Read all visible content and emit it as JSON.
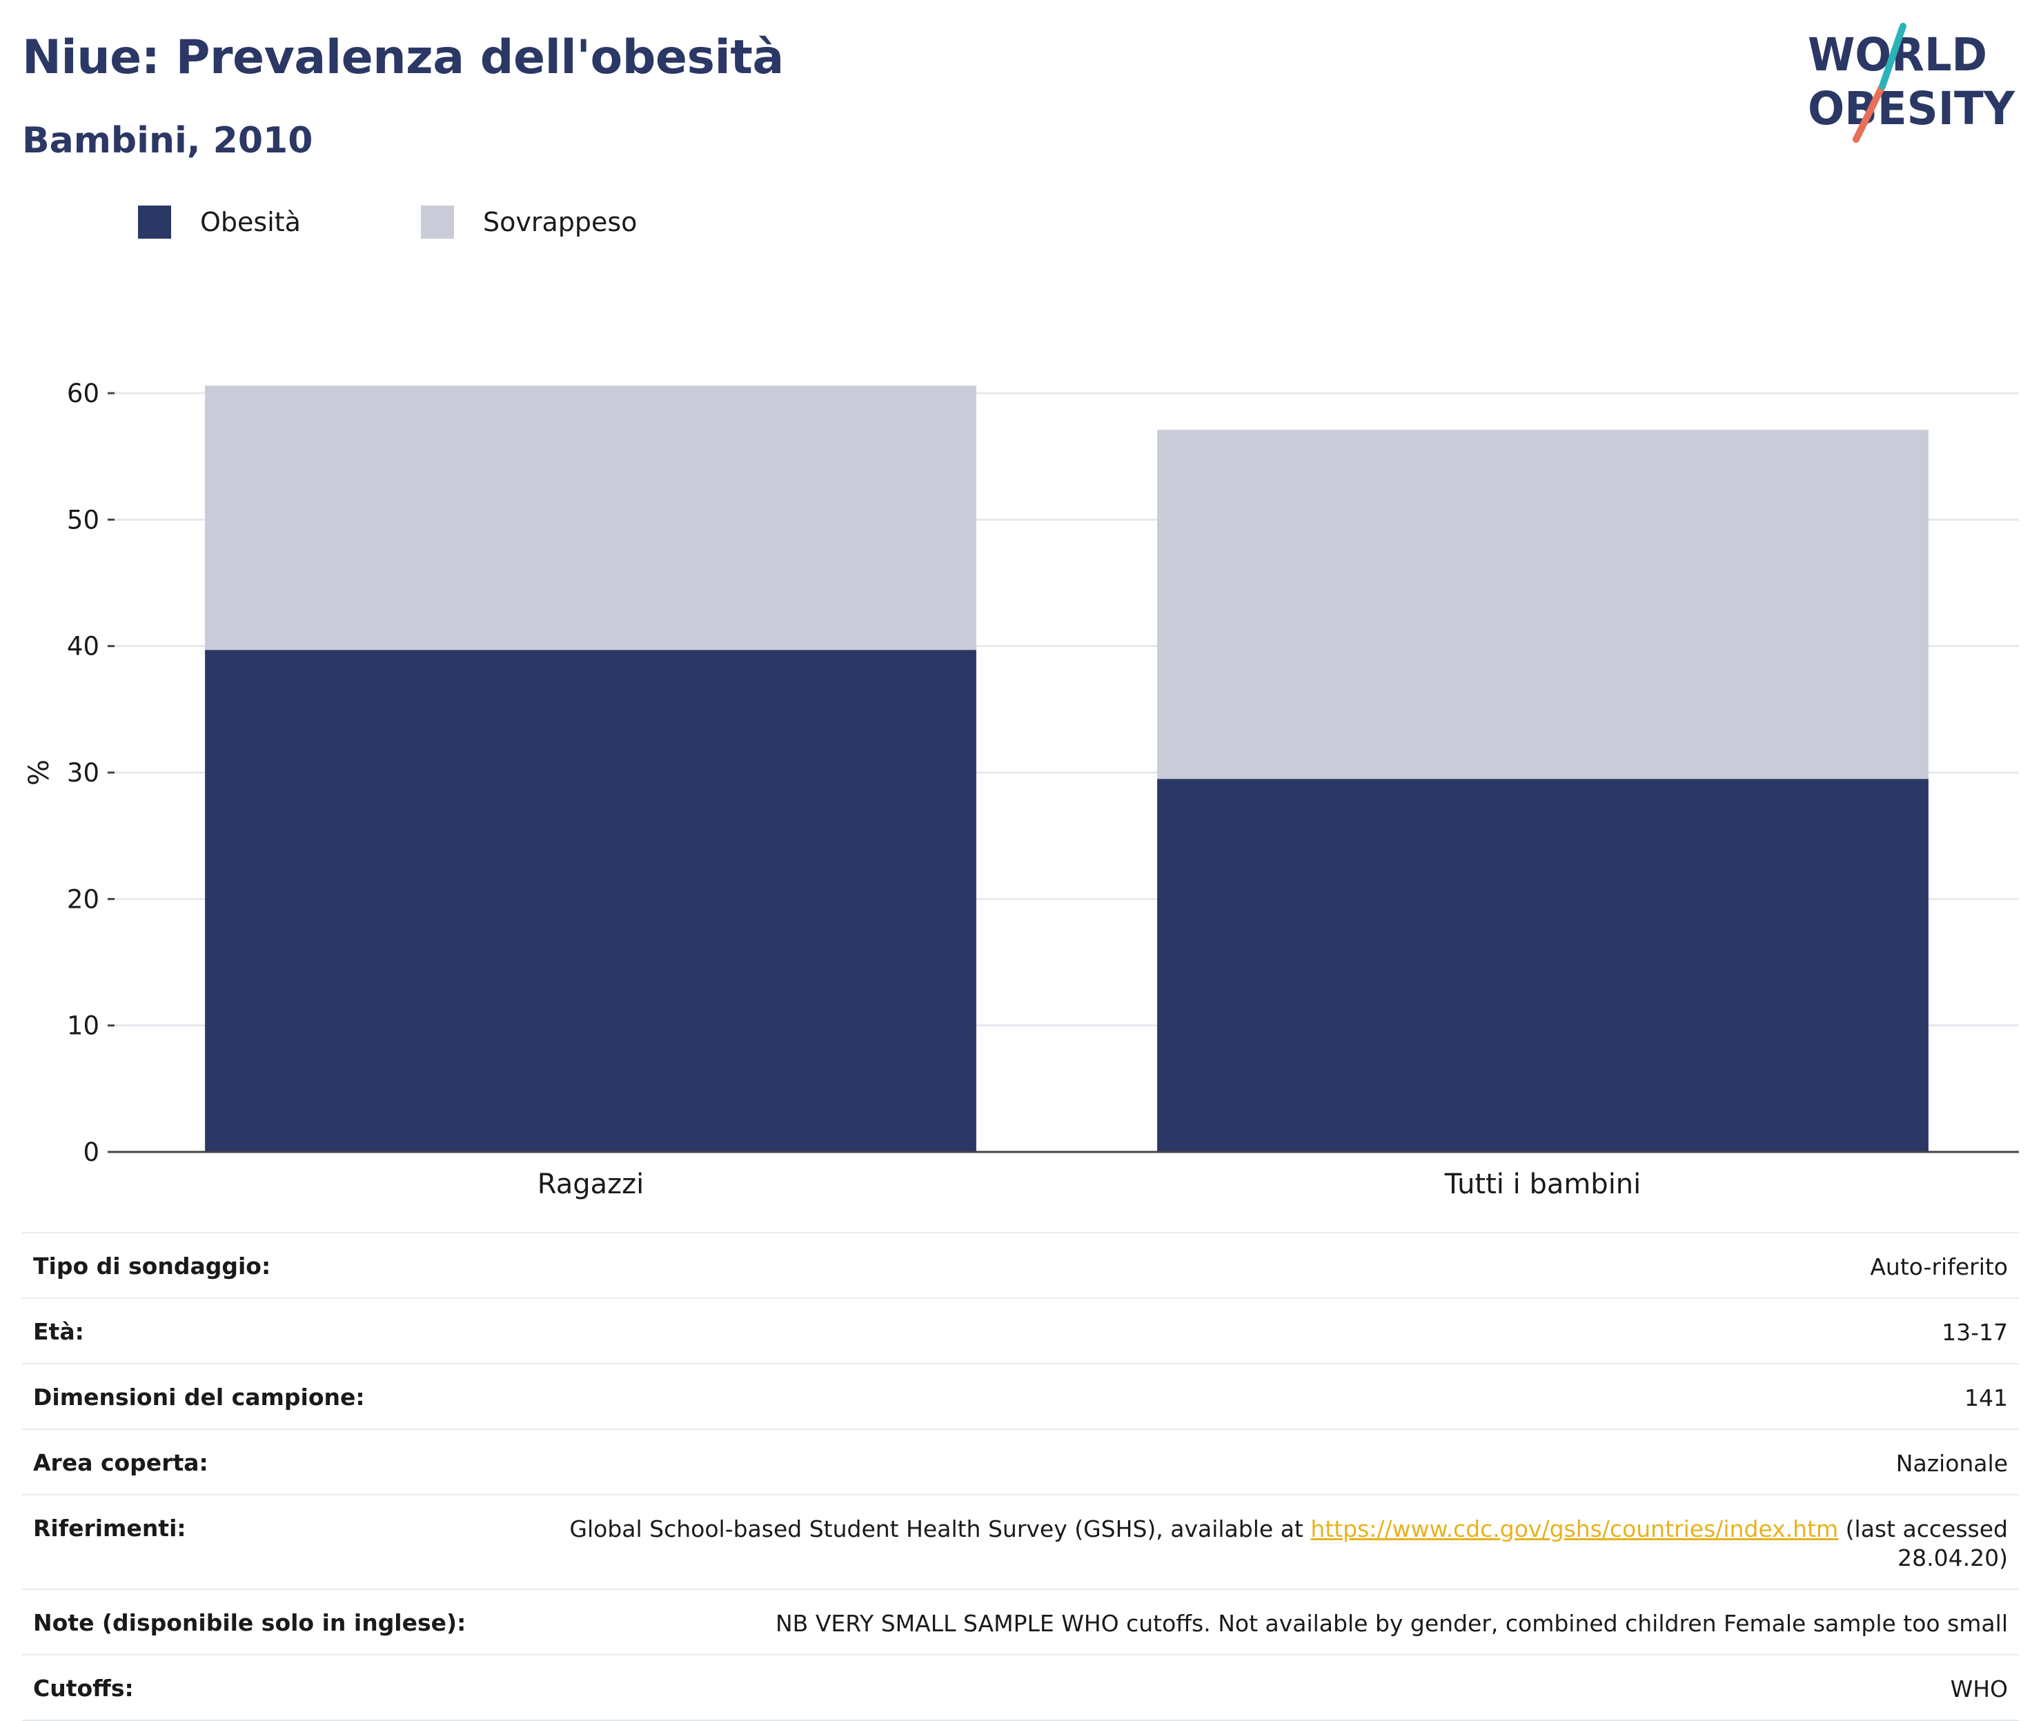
{
  "header": {
    "title": "Niue: Prevalenza dell'obesità",
    "subtitle": "Bambini, 2010",
    "logo_line1": "WORLD",
    "logo_line2": "OBESITY"
  },
  "legend": [
    {
      "label": "Obesità",
      "color": "#2b3764"
    },
    {
      "label": "Sovrappeso",
      "color": "#c9ccd8"
    }
  ],
  "chart_data": {
    "type": "bar",
    "stacked": true,
    "categories": [
      "Ragazzi",
      "Tutti i bambini"
    ],
    "series": [
      {
        "name": "Obesità",
        "color": "#2b3764",
        "values": [
          39.7,
          29.5
        ]
      },
      {
        "name": "Sovrappeso",
        "color": "#c9ccd8",
        "values": [
          20.9,
          27.6
        ]
      }
    ],
    "ylabel": "%",
    "ylim": [
      0,
      60
    ],
    "yticks": [
      0,
      10,
      20,
      30,
      40,
      50,
      60
    ],
    "grid": true,
    "legend_position": "top-left"
  },
  "info": {
    "rows": [
      {
        "label": "Tipo di sondaggio:",
        "value": "Auto-riferito"
      },
      {
        "label": "Età:",
        "value": "13-17"
      },
      {
        "label": "Dimensioni del campione:",
        "value": "141"
      },
      {
        "label": "Area coperta:",
        "value": "Nazionale"
      },
      {
        "label": "Note (disponibile solo in inglese):",
        "value": "NB VERY SMALL SAMPLE WHO cutoffs. Not available by gender, combined children Female sample too small"
      },
      {
        "label": "Cutoffs:",
        "value": "WHO"
      }
    ],
    "references": {
      "label": "Riferimenti:",
      "before": "Global School-based Student Health Survey (GSHS), available at ",
      "link": "https://www.cdc.gov/gshs/countries/index.htm",
      "after": " (last accessed 28.04.20)"
    }
  }
}
